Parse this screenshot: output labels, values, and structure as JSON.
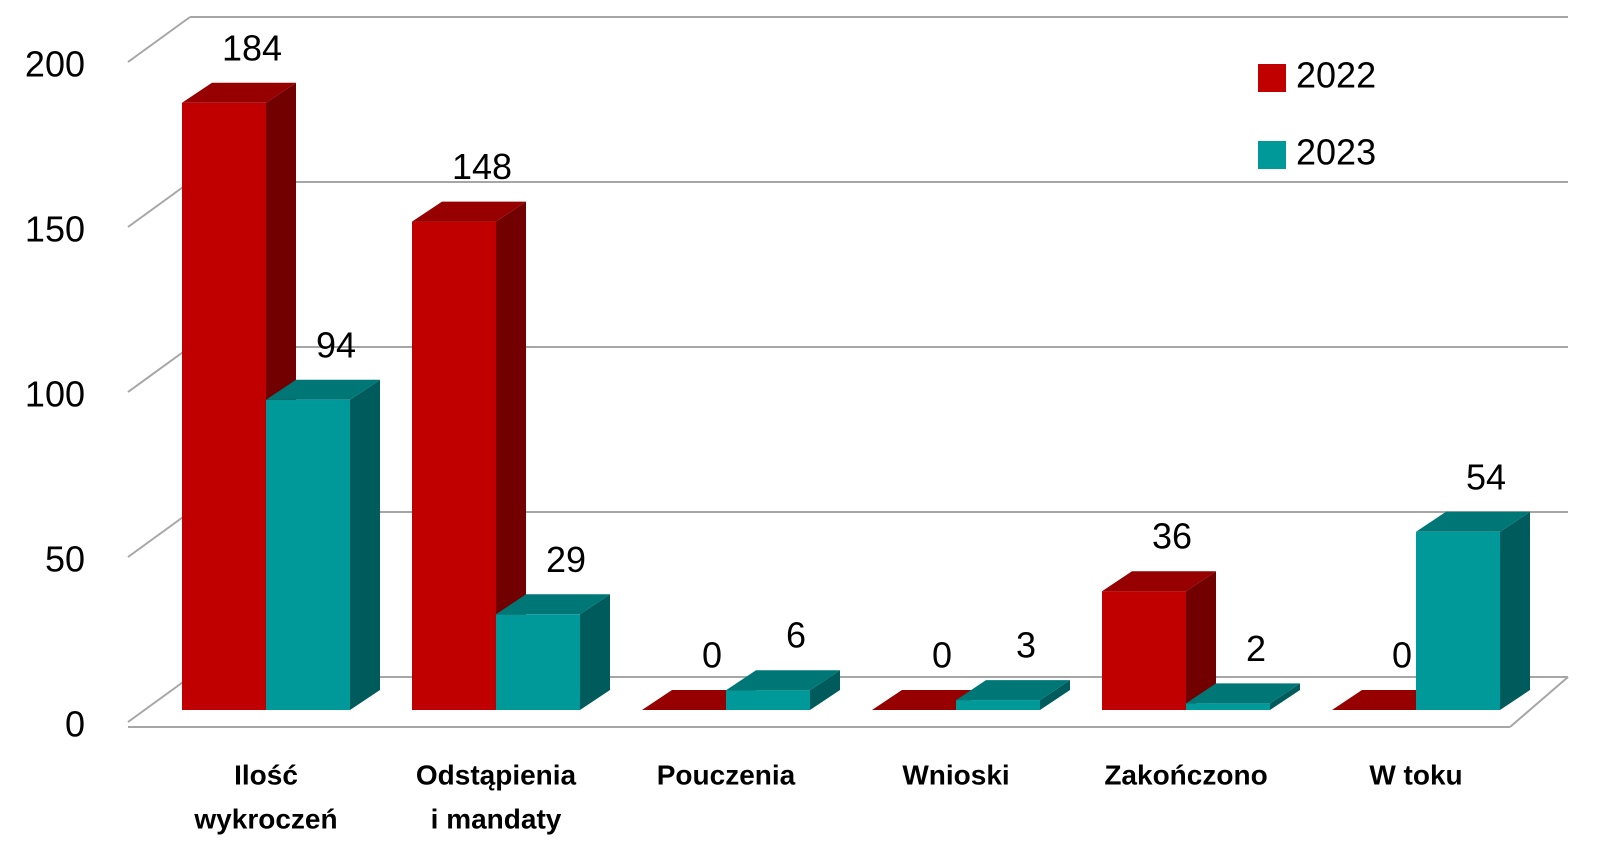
{
  "chart_data": {
    "type": "bar3d",
    "categories": [
      [
        "Ilość",
        "wykroczeń"
      ],
      [
        "Odstąpienia",
        "i mandaty"
      ],
      [
        "Pouczenia"
      ],
      [
        "Wnioski"
      ],
      [
        "Zakończono"
      ],
      [
        "W toku"
      ]
    ],
    "series": [
      {
        "name": "2022",
        "color": "#c00000",
        "values": [
          184,
          148,
          0,
          0,
          36,
          0
        ]
      },
      {
        "name": "2023",
        "color": "#009999",
        "values": [
          94,
          29,
          6,
          3,
          2,
          54
        ]
      }
    ],
    "ylim": [
      0,
      200
    ],
    "yticks": [
      0,
      50,
      100,
      150,
      200
    ],
    "grid": true,
    "legend": "top-right"
  }
}
